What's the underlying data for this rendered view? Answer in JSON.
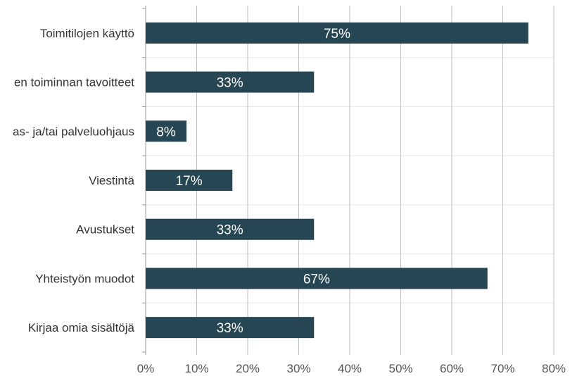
{
  "chart_data": {
    "type": "bar",
    "orientation": "horizontal",
    "categories": [
      "Toimitilojen käyttö",
      "en toiminnan tavoitteet",
      "as- ja/tai palveluohjaus",
      "Viestintä",
      "Avustukset",
      "Yhteistyön muodot",
      "Kirjaa omia sisältöjä"
    ],
    "values": [
      75,
      33,
      8,
      17,
      33,
      67,
      33
    ],
    "data_labels": [
      "75%",
      "33%",
      "8%",
      "17%",
      "33%",
      "67%",
      "33%"
    ],
    "xlim": [
      0,
      80
    ],
    "xticks": [
      0,
      10,
      20,
      30,
      40,
      50,
      60,
      70,
      80
    ],
    "xtick_labels": [
      "0%",
      "10%",
      "20%",
      "30%",
      "40%",
      "50%",
      "60%",
      "70%",
      "80%"
    ],
    "grid": true,
    "colors": {
      "bar": "#264653",
      "grid": "#bfbfbf",
      "data_label": "#ffffff"
    }
  }
}
